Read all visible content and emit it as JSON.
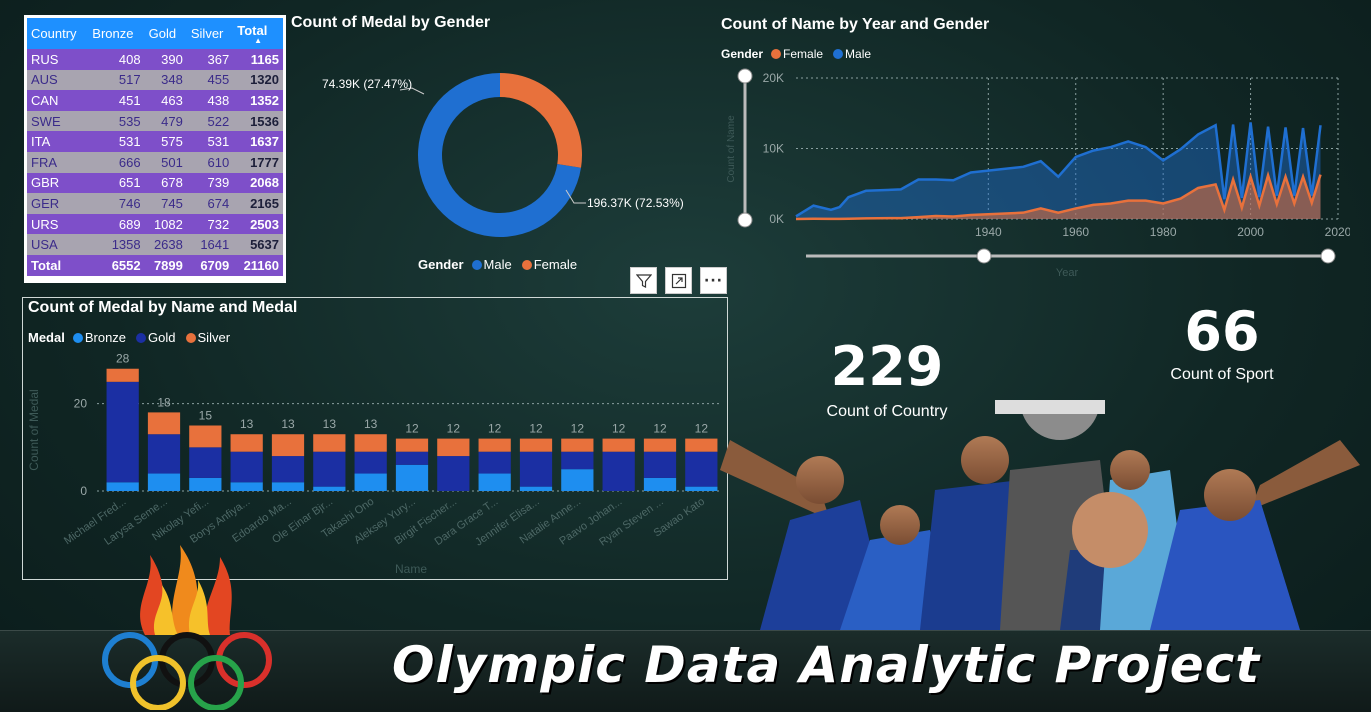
{
  "table": {
    "headers": [
      "Country",
      "Bronze",
      "Gold",
      "Silver",
      "Total"
    ],
    "rows": [
      {
        "country": "RUS",
        "bronze": "408",
        "gold": "390",
        "silver": "367",
        "total": "1165"
      },
      {
        "country": "AUS",
        "bronze": "517",
        "gold": "348",
        "silver": "455",
        "total": "1320"
      },
      {
        "country": "CAN",
        "bronze": "451",
        "gold": "463",
        "silver": "438",
        "total": "1352"
      },
      {
        "country": "SWE",
        "bronze": "535",
        "gold": "479",
        "silver": "522",
        "total": "1536"
      },
      {
        "country": "ITA",
        "bronze": "531",
        "gold": "575",
        "silver": "531",
        "total": "1637"
      },
      {
        "country": "FRA",
        "bronze": "666",
        "gold": "501",
        "silver": "610",
        "total": "1777"
      },
      {
        "country": "GBR",
        "bronze": "651",
        "gold": "678",
        "silver": "739",
        "total": "2068"
      },
      {
        "country": "GER",
        "bronze": "746",
        "gold": "745",
        "silver": "674",
        "total": "2165"
      },
      {
        "country": "URS",
        "bronze": "689",
        "gold": "1082",
        "silver": "732",
        "total": "2503"
      },
      {
        "country": "USA",
        "bronze": "1358",
        "gold": "2638",
        "silver": "1641",
        "total": "5637"
      }
    ],
    "total_row": {
      "label": "Total",
      "bronze": "6552",
      "gold": "7899",
      "silver": "6709",
      "total": "21160"
    }
  },
  "donut": {
    "title": "Count of Medal by Gender",
    "legend_title": "Gender",
    "male_label": "Male",
    "female_label": "Female",
    "male_value_label": "196.37K (72.53%)",
    "female_value_label": "74.39K (27.47%)",
    "colors": {
      "male": "#1f6fd1",
      "female": "#e8713c"
    }
  },
  "area": {
    "title": "Count of Name by Year and Gender",
    "legend_title": "Gender",
    "female_label": "Female",
    "male_label": "Male",
    "y_ticks": [
      "20K",
      "10K",
      "0K"
    ],
    "x_ticks": [
      "1940",
      "1960",
      "1980",
      "2000",
      "2020"
    ],
    "y_axis_label": "Count of Name",
    "x_axis_label": "Year"
  },
  "bar": {
    "title": "Count of Medal by Name and Medal",
    "legend_title": "Medal",
    "legend": [
      "Bronze",
      "Gold",
      "Silver"
    ],
    "y_ticks": [
      "20",
      "0"
    ],
    "y_axis_label": "Count of Medal",
    "x_axis_label": "Name",
    "colors": {
      "bronze": "#1e8ef0",
      "gold": "#1b2fa3",
      "silver": "#e8713c"
    }
  },
  "kpi": {
    "country_value": "229",
    "country_label": "Count of Country",
    "sport_value": "66",
    "sport_label": "Count of Sport"
  },
  "banner": {
    "title": "Olympic Data Analytic Project"
  },
  "chart_data": [
    {
      "type": "pie",
      "title": "Count of Medal by Gender",
      "categories": [
        "Male",
        "Female"
      ],
      "values": [
        196370,
        74390
      ],
      "percent": [
        72.53,
        27.47
      ],
      "legend": "bottom"
    },
    {
      "type": "area",
      "title": "Count of Name by Year and Gender",
      "xlabel": "Year",
      "ylabel": "Count of Name",
      "xlim": [
        1896,
        2020
      ],
      "ylim": [
        0,
        20000
      ],
      "x": [
        1896,
        1900,
        1904,
        1906,
        1908,
        1912,
        1920,
        1924,
        1928,
        1932,
        1936,
        1948,
        1952,
        1956,
        1960,
        1964,
        1968,
        1972,
        1976,
        1980,
        1984,
        1988,
        1992,
        1994,
        1996,
        1998,
        2000,
        2002,
        2004,
        2006,
        2008,
        2010,
        2012,
        2014,
        2016
      ],
      "series": [
        {
          "name": "Male",
          "values": [
            380,
            1900,
            1300,
            1700,
            3100,
            4000,
            4200,
            5600,
            5600,
            5500,
            6600,
            7400,
            8200,
            6000,
            8800,
            9700,
            10200,
            11000,
            10200,
            8300,
            9900,
            12000,
            13300,
            2800,
            13400,
            3000,
            13700,
            3100,
            13100,
            3300,
            13000,
            3300,
            12900,
            3300,
            13300
          ]
        },
        {
          "name": "Female",
          "values": [
            0,
            30,
            20,
            10,
            40,
            90,
            130,
            260,
            420,
            350,
            560,
            900,
            1500,
            900,
            1500,
            2000,
            2200,
            2600,
            2600,
            2200,
            2900,
            4400,
            4900,
            1300,
            5600,
            1600,
            6000,
            1900,
            6200,
            2100,
            6000,
            2200,
            6000,
            2300,
            6300
          ]
        }
      ],
      "legend": "top-left",
      "grid": true
    },
    {
      "type": "bar",
      "title": "Count of Medal by Name and Medal",
      "xlabel": "Name",
      "ylabel": "Count of Medal",
      "ylim": [
        0,
        30
      ],
      "categories": [
        "Michael Fred...",
        "Larysa Seme...",
        "Nikolay Yefi...",
        "Borys Anfiya...",
        "Edoardo Ma...",
        "Ole Einar Bjr...",
        "Takashi Ono",
        "Aleksey Yury...",
        "Birgit Fischer...",
        "Dara Grace T...",
        "Jennifer Elisa...",
        "Natalie Anne...",
        "Paavo Johan...",
        "Ryan Steven ...",
        "Sawao Kato"
      ],
      "totals": [
        28,
        18,
        15,
        13,
        13,
        13,
        13,
        12,
        12,
        12,
        12,
        12,
        12,
        12,
        12
      ],
      "series": [
        {
          "name": "Bronze",
          "values": [
            2,
            4,
            3,
            2,
            2,
            1,
            4,
            6,
            0,
            4,
            1,
            5,
            0,
            3,
            1
          ]
        },
        {
          "name": "Gold",
          "values": [
            23,
            9,
            7,
            7,
            6,
            8,
            5,
            3,
            8,
            5,
            8,
            4,
            9,
            6,
            8
          ]
        },
        {
          "name": "Silver",
          "values": [
            3,
            5,
            5,
            4,
            5,
            4,
            4,
            3,
            4,
            3,
            3,
            3,
            3,
            3,
            3
          ]
        }
      ],
      "legend": "top-left",
      "grid": true
    }
  ]
}
